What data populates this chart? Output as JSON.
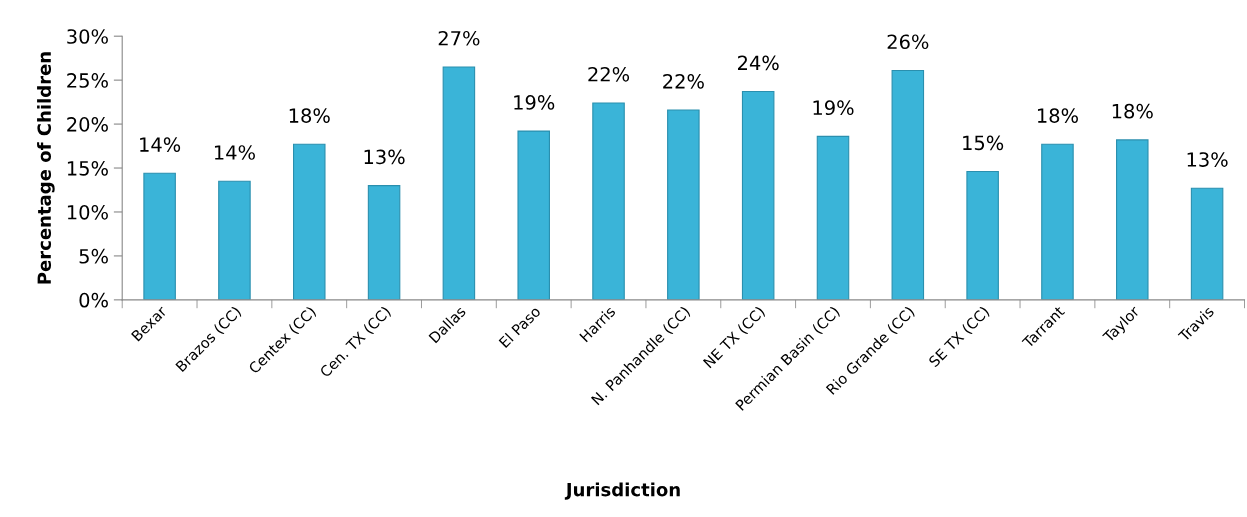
{
  "chart_data": {
    "type": "bar",
    "xlabel": "Jurisdiction",
    "ylabel": "Percentage of Children",
    "categories": [
      "Bexar",
      "Brazos (CC)",
      "Centex (CC)",
      "Cen. TX (CC)",
      "Dallas",
      "El Paso",
      "Harris",
      "N. Panhandle (CC)",
      "NE TX (CC)",
      "Permian Basin (CC)",
      "Rio Grande (CC)",
      "SE TX (CC)",
      "Tarrant",
      "Taylor",
      "Travis"
    ],
    "values": [
      14.4,
      13.5,
      17.7,
      13.0,
      26.5,
      19.2,
      22.4,
      21.6,
      23.7,
      18.6,
      26.1,
      14.6,
      17.7,
      18.2,
      12.7
    ],
    "value_labels": [
      "14%",
      "14%",
      "18%",
      "13%",
      "27%",
      "19%",
      "22%",
      "22%",
      "24%",
      "19%",
      "26%",
      "15%",
      "18%",
      "18%",
      "13%"
    ],
    "color": "#3ab4d8",
    "ylim": [
      0,
      30
    ],
    "yticks": [
      {
        "value": 0,
        "label": "0%"
      },
      {
        "value": 5,
        "label": "5%"
      },
      {
        "value": 10,
        "label": "10%"
      },
      {
        "value": 15,
        "label": "15%"
      },
      {
        "value": 20,
        "label": "20%"
      },
      {
        "value": 25,
        "label": "25%"
      },
      {
        "value": 30,
        "label": "30%"
      }
    ],
    "grid": false,
    "legend": false
  }
}
